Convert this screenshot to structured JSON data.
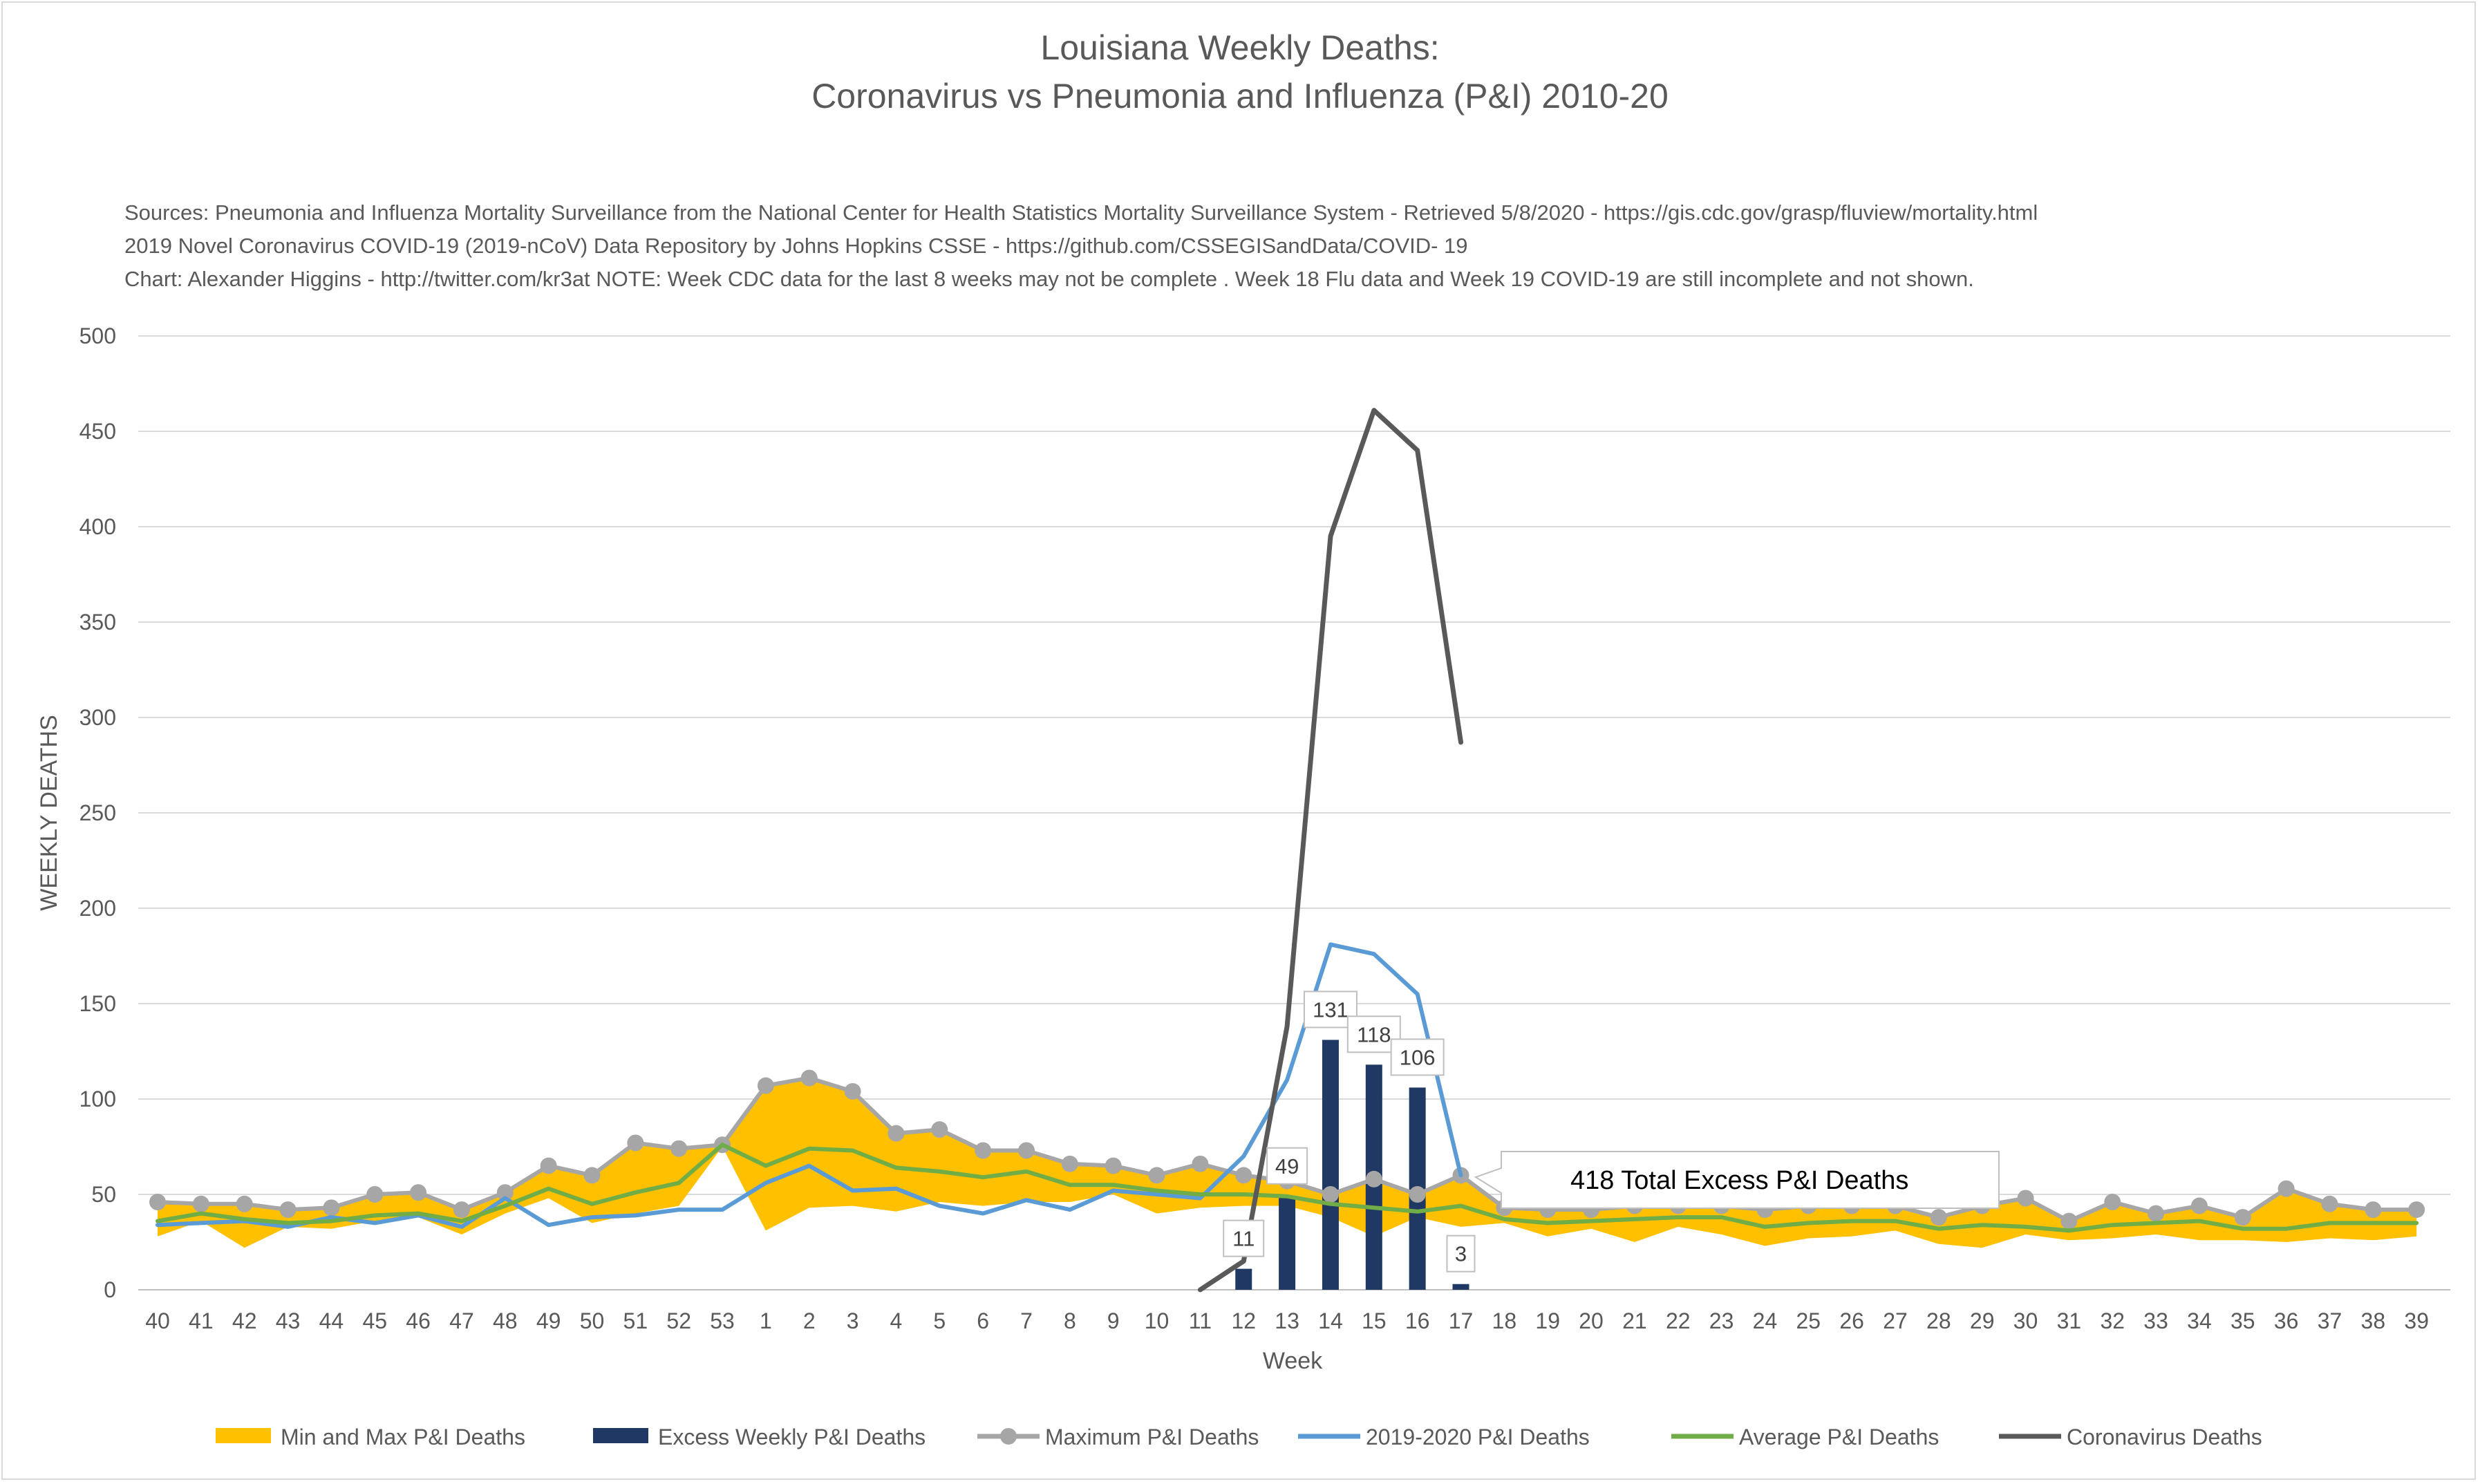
{
  "chart_data": {
    "type": "line",
    "title_line1": "Louisiana Weekly Deaths:",
    "title_line2": "Coronavirus vs Pneumonia and Influenza (P&I) 2010-20",
    "sources": [
      "Sources: Pneumonia and Influenza Mortality Surveillance from the National Center for Health Statistics Mortality Surveillance System - Retrieved 5/8/2020 - https://gis.cdc.gov/grasp/fluview/mortality.html",
      "2019 Novel Coronavirus COVID-19 (2019-nCoV) Data Repository by Johns Hopkins CSSE - https://github.com/CSSEGISandData/COVID- 19",
      "Chart: Alexander Higgins - http://twitter.com/kr3at   NOTE: Week CDC data for the last 8 weeks may not be complete . Week 18 Flu data and Week 19 COVID-19 are still incomplete and not shown."
    ],
    "xlabel": "Week",
    "ylabel": "WEEKLY DEATHS",
    "ylim": [
      0,
      500
    ],
    "yticks": [
      0,
      50,
      100,
      150,
      200,
      250,
      300,
      350,
      400,
      450,
      500
    ],
    "grid": true,
    "legend_position": "bottom",
    "categories": [
      "40",
      "41",
      "42",
      "43",
      "44",
      "45",
      "46",
      "47",
      "48",
      "49",
      "50",
      "51",
      "52",
      "53",
      "1",
      "2",
      "3",
      "4",
      "5",
      "6",
      "7",
      "8",
      "9",
      "10",
      "11",
      "12",
      "13",
      "14",
      "15",
      "16",
      "17",
      "18",
      "19",
      "20",
      "21",
      "22",
      "23",
      "24",
      "25",
      "26",
      "27",
      "28",
      "29",
      "30",
      "31",
      "32",
      "33",
      "34",
      "35",
      "36",
      "37",
      "38",
      "39"
    ],
    "series": [
      {
        "name": "Min and Max P&I Deaths",
        "kind": "band",
        "color": "#ffc000",
        "min": [
          28,
          36,
          22,
          33,
          32,
          36,
          38,
          29,
          40,
          48,
          35,
          40,
          44,
          75,
          31,
          43,
          44,
          41,
          46,
          44,
          46,
          46,
          50,
          40,
          43,
          44,
          44,
          38,
          28,
          38,
          33,
          35,
          28,
          32,
          25,
          33,
          29,
          23,
          27,
          28,
          31,
          24,
          22,
          29,
          26,
          27,
          29,
          26,
          26,
          25,
          27,
          26,
          28
        ],
        "max": [
          46,
          45,
          45,
          42,
          43,
          50,
          51,
          42,
          51,
          65,
          60,
          77,
          74,
          76,
          107,
          111,
          104,
          82,
          84,
          73,
          73,
          66,
          65,
          60,
          66,
          60,
          57,
          50,
          58,
          50,
          60,
          43,
          42,
          42,
          44,
          44,
          44,
          42,
          44,
          44,
          44,
          38,
          44,
          48,
          36,
          46,
          40,
          44,
          38,
          53,
          45,
          42,
          42
        ]
      },
      {
        "name": "Excess Weekly P&I Deaths",
        "kind": "bar",
        "color": "#203864",
        "values": [
          null,
          null,
          null,
          null,
          null,
          null,
          null,
          null,
          null,
          null,
          null,
          null,
          null,
          null,
          null,
          null,
          null,
          null,
          null,
          null,
          null,
          null,
          null,
          null,
          null,
          11,
          49,
          131,
          118,
          106,
          3,
          null,
          null,
          null,
          null,
          null,
          null,
          null,
          null,
          null,
          null,
          null,
          null,
          null,
          null,
          null,
          null,
          null,
          null,
          null,
          null,
          null,
          null
        ]
      },
      {
        "name": "Maximum P&I Deaths",
        "kind": "line-marker",
        "color": "#a6a6a6",
        "values": [
          46,
          45,
          45,
          42,
          43,
          50,
          51,
          42,
          51,
          65,
          60,
          77,
          74,
          76,
          107,
          111,
          104,
          82,
          84,
          73,
          73,
          66,
          65,
          60,
          66,
          60,
          57,
          50,
          58,
          50,
          60,
          43,
          42,
          42,
          44,
          44,
          44,
          42,
          44,
          44,
          44,
          38,
          44,
          48,
          36,
          46,
          40,
          44,
          38,
          53,
          45,
          42,
          42
        ]
      },
      {
        "name": "2019-2020 P&I Deaths",
        "kind": "line",
        "color": "#5b9bd5",
        "values": [
          34,
          35,
          36,
          33,
          38,
          35,
          39,
          33,
          48,
          34,
          38,
          39,
          42,
          42,
          56,
          65,
          52,
          53,
          44,
          40,
          47,
          42,
          52,
          50,
          48,
          70,
          110,
          181,
          176,
          155,
          60,
          null,
          null,
          null,
          null,
          null,
          null,
          null,
          null,
          null,
          null,
          null,
          null,
          null,
          null,
          null,
          null,
          null,
          null,
          null,
          null,
          null,
          null
        ]
      },
      {
        "name": "Average P&I Deaths",
        "kind": "line",
        "color": "#70ad47",
        "values": [
          36,
          40,
          37,
          35,
          36,
          39,
          40,
          36,
          44,
          53,
          45,
          51,
          56,
          76,
          65,
          74,
          73,
          64,
          62,
          59,
          62,
          55,
          55,
          52,
          50,
          50,
          49,
          45,
          43,
          41,
          44,
          37,
          35,
          36,
          37,
          38,
          38,
          33,
          35,
          36,
          36,
          32,
          34,
          33,
          31,
          34,
          35,
          36,
          32,
          32,
          35,
          35,
          35
        ]
      },
      {
        "name": "Coronavirus Deaths",
        "kind": "line",
        "color": "#595959",
        "values": [
          null,
          null,
          null,
          null,
          null,
          null,
          null,
          null,
          null,
          null,
          null,
          null,
          null,
          null,
          null,
          null,
          null,
          null,
          null,
          null,
          null,
          null,
          null,
          null,
          0,
          15,
          138,
          395,
          461,
          440,
          287,
          null,
          null,
          null,
          null,
          null,
          null,
          null,
          null,
          null,
          null,
          null,
          null,
          null,
          null,
          null,
          null,
          null,
          null,
          null,
          null,
          null,
          null
        ]
      }
    ],
    "annotation": "418 Total Excess P&I Deaths"
  }
}
